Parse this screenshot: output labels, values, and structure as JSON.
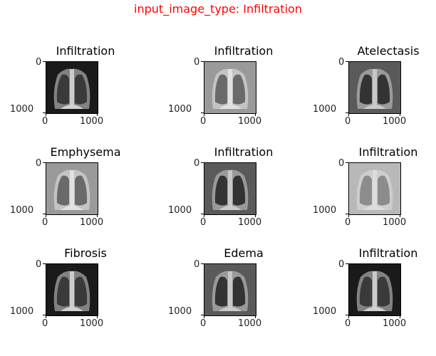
{
  "figure": {
    "suptitle": "input_image_type: Infiltration",
    "suptitle_color": "#ff0000",
    "tick_labels": {
      "y_top": "0",
      "y_bottom": "1000",
      "x_left": "0",
      "x_right": "1000"
    }
  },
  "panels": [
    {
      "title": "Infiltration",
      "variant": "dark"
    },
    {
      "title": "Infiltration",
      "variant": "light"
    },
    {
      "title": "Atelectasis",
      "variant": "normal"
    },
    {
      "title": "Emphysema",
      "variant": "light"
    },
    {
      "title": "Infiltration",
      "variant": "normal"
    },
    {
      "title": "Infiltration",
      "variant": "hazy"
    },
    {
      "title": "Fibrosis",
      "variant": "dark"
    },
    {
      "title": "Edema",
      "variant": "normal"
    },
    {
      "title": "Infiltration",
      "variant": "dark"
    }
  ]
}
